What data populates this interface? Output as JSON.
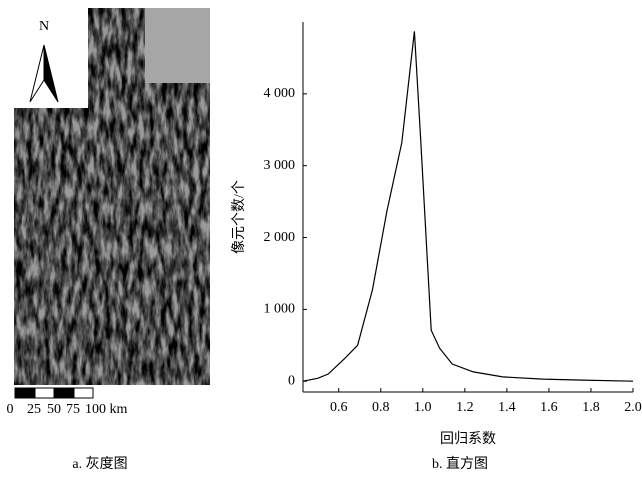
{
  "image_panel": {
    "north": "N",
    "scale_labels": [
      "0",
      "25",
      "50",
      "75",
      "100 km"
    ],
    "caption": "a. 灰度图"
  },
  "chart_data": {
    "type": "line",
    "caption": "b. 直方图",
    "x_label": "回归系数",
    "y_label": "像元个数/个",
    "x": [
      0.43,
      0.5,
      0.55,
      0.63,
      0.69,
      0.76,
      0.83,
      0.9,
      0.96,
      0.99,
      1.04,
      1.08,
      1.14,
      1.24,
      1.38,
      1.57,
      1.76,
      2.0
    ],
    "values": [
      0,
      40,
      100,
      320,
      500,
      1270,
      2380,
      3320,
      4870,
      3360,
      710,
      460,
      240,
      130,
      60,
      30,
      15,
      0
    ],
    "color": "#000000",
    "xlim": [
      0.43,
      2.0
    ],
    "ylim": [
      -150,
      5000
    ],
    "xticks": [
      0.6,
      0.8,
      {
        "value": 1,
        "label": "1.0"
      },
      1.2,
      1.4,
      1.6,
      1.8,
      {
        "value": 2,
        "label": "2.0"
      }
    ],
    "yticks": [
      0,
      {
        "value": 1000,
        "label": "1 000"
      },
      {
        "value": 2000,
        "label": "2 000"
      },
      {
        "value": 3000,
        "label": "3 000"
      },
      {
        "value": 4000,
        "label": "4 000"
      }
    ],
    "grid": false
  }
}
